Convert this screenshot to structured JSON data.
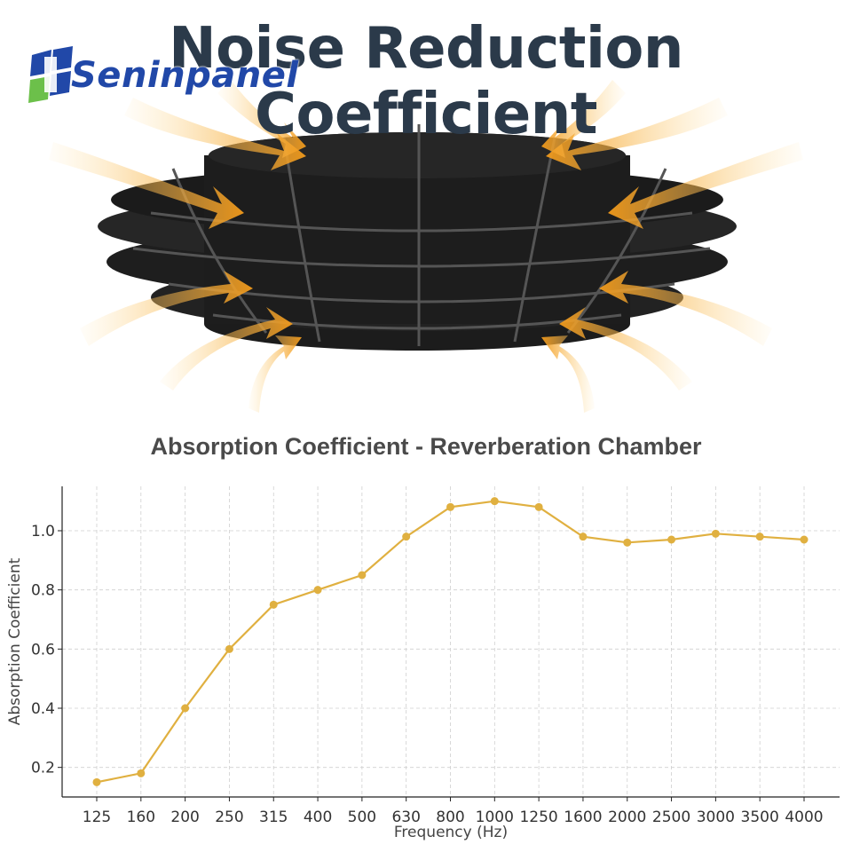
{
  "header": {
    "title": "Noise Reduction Coefficient",
    "brand": "Seninpanel"
  },
  "colors": {
    "title": "#2b3a4a",
    "brand": "#2148a8",
    "brand_green": "#6cc04a",
    "line": "#e0b040",
    "arrow": "#f5a623",
    "panel": "#1a1a1a"
  },
  "chart_data": {
    "type": "line",
    "title": "Absorption Coefficient - Reverberation Chamber",
    "xlabel": "Frequency (Hz)",
    "ylabel": "Absorption Coefficient",
    "categories": [
      "125",
      "160",
      "200",
      "250",
      "315",
      "400",
      "500",
      "630",
      "800",
      "1000",
      "1250",
      "1600",
      "2000",
      "2500",
      "3000",
      "3500",
      "4000"
    ],
    "values": [
      0.15,
      0.18,
      0.4,
      0.6,
      0.75,
      0.8,
      0.85,
      0.98,
      1.08,
      1.1,
      1.08,
      0.98,
      0.96,
      0.97,
      0.99,
      0.98,
      0.97
    ],
    "yticks": [
      "0.2",
      "0.4",
      "0.6",
      "0.8",
      "1.0"
    ],
    "ylim": [
      0.1,
      1.15
    ],
    "grid": true
  }
}
